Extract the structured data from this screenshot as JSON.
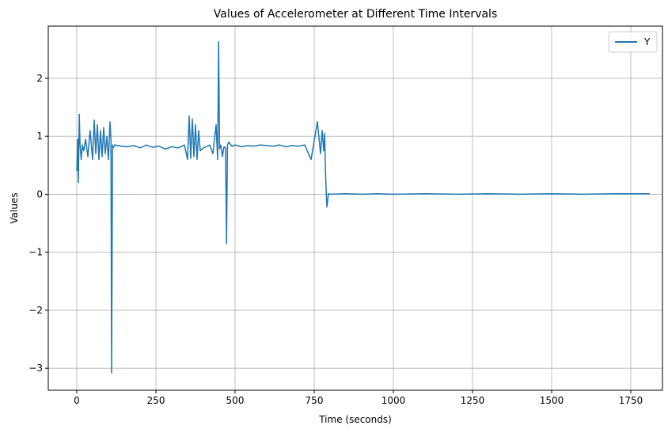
{
  "chart_data": {
    "type": "line",
    "title": "Values of Accelerometer at Different Time Intervals",
    "xlabel": "Time (seconds)",
    "ylabel": "Values",
    "xlim": [
      -90,
      1850
    ],
    "ylim": [
      -3.38,
      2.9
    ],
    "xticks": [
      0,
      250,
      500,
      750,
      1000,
      1250,
      1500,
      1750
    ],
    "xtick_labels": [
      "0",
      "250",
      "500",
      "750",
      "1000",
      "1250",
      "1500",
      "1750"
    ],
    "yticks": [
      -3,
      -2,
      -1,
      0,
      1,
      2
    ],
    "ytick_labels": [
      "−3",
      "−2",
      "−1",
      "0",
      "1",
      "2"
    ],
    "grid": true,
    "legend_position": "top-right",
    "series": [
      {
        "name": "Y",
        "color": "#1f77b4",
        "x": [
          0,
          3,
          5,
          8,
          10,
          14,
          18,
          22,
          28,
          35,
          42,
          50,
          55,
          60,
          65,
          70,
          75,
          80,
          85,
          90,
          95,
          100,
          105,
          108,
          110,
          113,
          115,
          120,
          140,
          160,
          180,
          200,
          220,
          240,
          260,
          280,
          300,
          320,
          340,
          350,
          355,
          360,
          365,
          370,
          375,
          380,
          385,
          390,
          400,
          420,
          430,
          440,
          445,
          448,
          451,
          455,
          460,
          465,
          470,
          473,
          476,
          480,
          490,
          500,
          520,
          540,
          560,
          580,
          600,
          620,
          640,
          660,
          680,
          700,
          720,
          740,
          760,
          770,
          775,
          780,
          783,
          785,
          788,
          790,
          795,
          800,
          850,
          900,
          950,
          1000,
          1100,
          1200,
          1300,
          1400,
          1500,
          1600,
          1700,
          1810
        ],
        "y": [
          0.4,
          0.95,
          0.2,
          1.38,
          0.9,
          0.6,
          0.85,
          0.75,
          0.95,
          0.65,
          1.1,
          0.6,
          1.28,
          0.7,
          1.2,
          0.6,
          1.1,
          0.65,
          1.15,
          0.7,
          1.0,
          0.6,
          1.25,
          0.95,
          -3.08,
          0.85,
          0.8,
          0.85,
          0.83,
          0.82,
          0.84,
          0.8,
          0.85,
          0.81,
          0.83,
          0.78,
          0.82,
          0.8,
          0.85,
          0.6,
          1.35,
          0.62,
          1.3,
          0.65,
          1.2,
          0.6,
          1.1,
          0.75,
          0.8,
          0.85,
          0.7,
          1.2,
          0.6,
          2.63,
          0.78,
          0.85,
          0.65,
          0.82,
          0.8,
          -0.85,
          0.85,
          0.9,
          0.83,
          0.85,
          0.82,
          0.84,
          0.83,
          0.85,
          0.84,
          0.83,
          0.85,
          0.82,
          0.84,
          0.83,
          0.85,
          0.6,
          1.25,
          0.7,
          1.1,
          0.75,
          1.05,
          0.5,
          0.02,
          -0.22,
          0.01,
          0.0,
          0.01,
          0.0,
          0.01,
          0.0,
          0.01,
          0.0,
          0.01,
          0.0,
          0.01,
          0.0,
          0.01,
          0.01
        ]
      }
    ]
  }
}
